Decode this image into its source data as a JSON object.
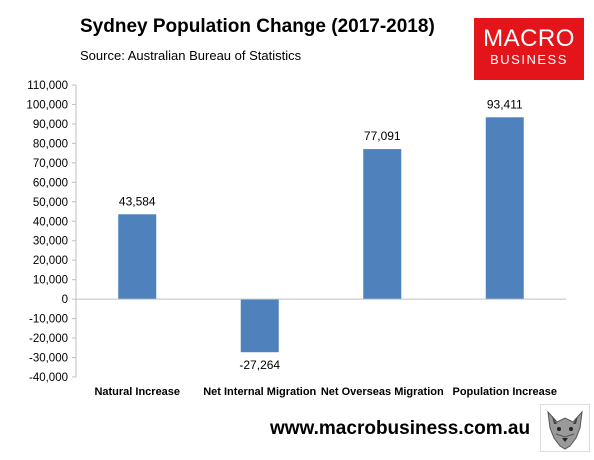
{
  "header": {
    "title": "Sydney Population Change (2017-2018)",
    "subtitle": "Source: Australian Bureau of Statistics"
  },
  "logo": {
    "line1": "MACRO",
    "line2": "BUSINESS",
    "color": "#e4141b"
  },
  "footer": {
    "website": "www.macrobusiness.com.au",
    "mascot_icon": "wolf-icon"
  },
  "chart_data": {
    "type": "bar",
    "categories": [
      "Natural Increase",
      "Net Internal Migration",
      "Net Overseas Migration",
      "Population Increase"
    ],
    "values": [
      43584,
      -27264,
      77091,
      93411
    ],
    "data_labels": [
      "43,584",
      "-27,264",
      "77,091",
      "93,411"
    ],
    "ylim": [
      -40000,
      110000
    ],
    "ytick_step": 10000,
    "ytick_labels": [
      "-40,000",
      "-30,000",
      "-20,000",
      "-10,000",
      "0",
      "10,000",
      "20,000",
      "30,000",
      "40,000",
      "50,000",
      "60,000",
      "70,000",
      "80,000",
      "90,000",
      "100,000",
      "110,000"
    ],
    "bar_color": "#4f81bd",
    "grid": false,
    "legend": "none"
  }
}
